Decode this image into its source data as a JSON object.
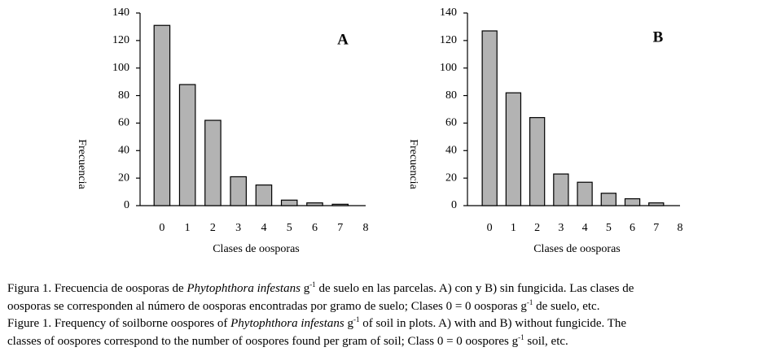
{
  "chart_data": [
    {
      "type": "bar",
      "label": "A",
      "x_label": "Clases de oosporas",
      "y_label": "Frecuencia",
      "x": [
        0,
        1,
        2,
        3,
        4,
        5,
        6,
        7
      ],
      "values": [
        131,
        88,
        62,
        21,
        15,
        4,
        2,
        1
      ],
      "color": "#b3b3b3",
      "xlim": [
        -0.86,
        8
      ],
      "xticks": [
        0,
        1,
        2,
        3,
        4,
        5,
        6,
        7,
        8
      ],
      "ylim": [
        0,
        140
      ],
      "yticks": [
        0,
        20,
        40,
        60,
        80,
        100,
        120,
        140
      ]
    },
    {
      "type": "bar",
      "label": "B",
      "x_label": "Clases de oosporas",
      "y_label": "Frecuencia",
      "x": [
        0,
        1,
        2,
        3,
        4,
        5,
        6,
        7
      ],
      "values": [
        127,
        82,
        64,
        23,
        17,
        9,
        5,
        2
      ],
      "color": "#b3b3b3",
      "xlim": [
        -0.93,
        8
      ],
      "xticks": [
        0,
        1,
        2,
        3,
        4,
        5,
        6,
        7,
        8
      ],
      "ylim": [
        0,
        140
      ],
      "yticks": [
        0,
        20,
        40,
        60,
        80,
        100,
        120,
        140
      ]
    }
  ],
  "caption": {
    "spanish": [
      "Figura 1. Frecuencia de oosporas de ",
      "Phytophthora infestans",
      " g",
      "-1",
      " de suelo en las parcelas. A) con y B) sin fungicida. Las clases de",
      "oosporas se corresponden al número de oosporas encontradas por gramo de suelo; Clases 0 = 0 oosporas g",
      "-1",
      " de suelo, etc."
    ],
    "english": [
      "Figure 1. Frequency of soilborne oospores of ",
      "Phytophthora infestans",
      " g",
      "-1",
      " of soil in plots. A) with and B) without fungicide. The",
      "classes of oospores correspond to the number of oospores found per gram of soil; Class 0 = 0 oospores g",
      "-1",
      " soil, etc."
    ]
  }
}
